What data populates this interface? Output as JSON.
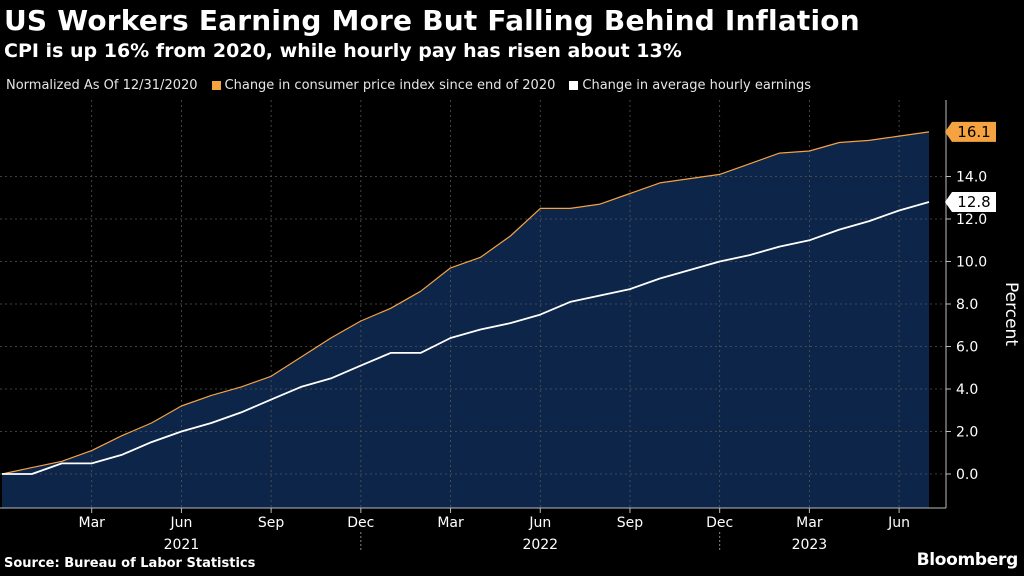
{
  "header": {
    "title": "US Workers Earning More But Falling Behind Inflation",
    "subtitle": "CPI is up 16% from 2020, while hourly pay has risen about 13%"
  },
  "legend": {
    "note": "Normalized As Of 12/31/2020",
    "items": [
      {
        "label": "Change in consumer price index since end of 2020",
        "color": "#f4a340"
      },
      {
        "label": "Change in average hourly earnings",
        "color": "#ffffff"
      }
    ]
  },
  "footer": {
    "source": "Source: Bureau of Labor Statistics",
    "brand": "Bloomberg"
  },
  "colors": {
    "background": "#000000",
    "area": "#0c2548",
    "cpi": "#f4a340",
    "earnings": "#ffffff",
    "grid": "#555555"
  },
  "chart_data": {
    "type": "line",
    "title": "US Workers Earning More But Falling Behind Inflation",
    "xlabel": "",
    "ylabel": "Percent",
    "ylim": [
      -1.6,
      17.6
    ],
    "yticks": [
      "0.0",
      "2.0",
      "4.0",
      "6.0",
      "8.0",
      "10.0",
      "12.0",
      "14.0"
    ],
    "grid": true,
    "legend_position": "top-left",
    "x": [
      "Dec 2020",
      "Jan 2021",
      "Feb 2021",
      "Mar 2021",
      "Apr 2021",
      "May 2021",
      "Jun 2021",
      "Jul 2021",
      "Aug 2021",
      "Sep 2021",
      "Oct 2021",
      "Nov 2021",
      "Dec 2021",
      "Jan 2022",
      "Feb 2022",
      "Mar 2022",
      "Apr 2022",
      "May 2022",
      "Jun 2022",
      "Jul 2022",
      "Aug 2022",
      "Sep 2022",
      "Oct 2022",
      "Nov 2022",
      "Dec 2022",
      "Jan 2023",
      "Feb 2023",
      "Mar 2023",
      "Apr 2023",
      "May 2023",
      "Jun 2023",
      "Jul 2023"
    ],
    "month_ticks": [
      {
        "index": 3,
        "label": "Mar"
      },
      {
        "index": 6,
        "label": "Jun"
      },
      {
        "index": 9,
        "label": "Sep"
      },
      {
        "index": 12,
        "label": "Dec"
      },
      {
        "index": 15,
        "label": "Mar"
      },
      {
        "index": 18,
        "label": "Jun"
      },
      {
        "index": 21,
        "label": "Sep"
      },
      {
        "index": 24,
        "label": "Dec"
      },
      {
        "index": 27,
        "label": "Mar"
      },
      {
        "index": 30,
        "label": "Jun"
      }
    ],
    "year_labels": [
      {
        "center_index": 6,
        "label": "2021"
      },
      {
        "center_index": 18,
        "label": "2022"
      },
      {
        "center_index": 27,
        "label": "2023"
      }
    ],
    "year_separators": [
      12,
      24
    ],
    "series": [
      {
        "name": "Change in consumer price index since end of 2020",
        "color": "#f4a340",
        "end_label": "16.1",
        "values": [
          0.0,
          0.3,
          0.6,
          1.1,
          1.8,
          2.4,
          3.2,
          3.7,
          4.1,
          4.6,
          5.5,
          6.4,
          7.2,
          7.8,
          8.6,
          9.7,
          10.2,
          11.2,
          12.5,
          12.5,
          12.7,
          13.2,
          13.7,
          13.9,
          14.1,
          14.6,
          15.1,
          15.2,
          15.6,
          15.7,
          15.9,
          16.1
        ]
      },
      {
        "name": "Change in average hourly earnings",
        "color": "#ffffff",
        "end_label": "12.8",
        "values": [
          0.0,
          0.0,
          0.5,
          0.5,
          0.9,
          1.5,
          2.0,
          2.4,
          2.9,
          3.5,
          4.1,
          4.5,
          5.1,
          5.7,
          5.7,
          6.4,
          6.8,
          7.1,
          7.5,
          8.1,
          8.4,
          8.7,
          9.2,
          9.6,
          10.0,
          10.3,
          10.7,
          11.0,
          11.5,
          11.9,
          12.4,
          12.8
        ]
      }
    ]
  }
}
